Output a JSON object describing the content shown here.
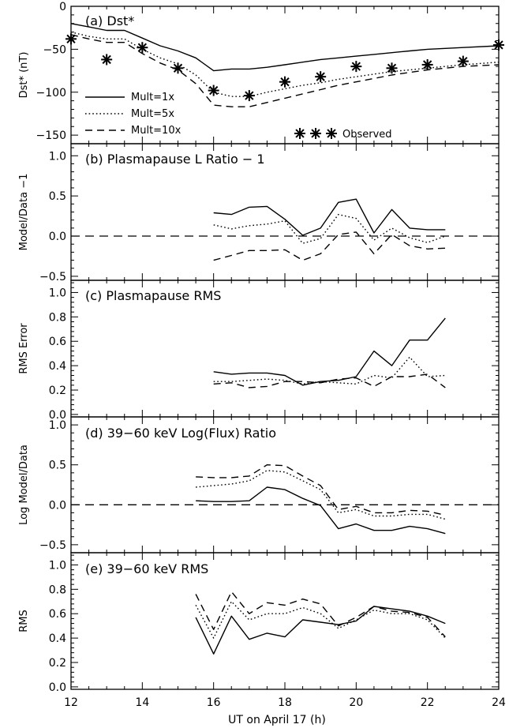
{
  "x_axis": {
    "label": "UT on April 17 (h)",
    "range": [
      12,
      24
    ],
    "ticks": [
      "12",
      "14",
      "16",
      "18",
      "20",
      "22",
      "24"
    ]
  },
  "legend": {
    "entries": [
      {
        "label": "Mult=1x",
        "style": "solid"
      },
      {
        "label": "Mult=5x",
        "style": "dotted"
      },
      {
        "label": "Mult=10x",
        "style": "dashed"
      }
    ],
    "observed_label": "Observed"
  },
  "chart_data": [
    {
      "type": "line",
      "title": "(a) Dst*",
      "ylabel": "Dst* (nT)",
      "ylim": [
        -160,
        0
      ],
      "yticks": [
        0,
        -50,
        -100,
        -150
      ],
      "yticklabels": [
        "0",
        "−50",
        "−100",
        "−150"
      ],
      "series": [
        {
          "name": "Mult=1x",
          "style": "solid",
          "x": [
            12,
            12.5,
            13,
            13.5,
            14,
            14.5,
            15,
            15.5,
            16,
            16.5,
            17,
            17.5,
            18,
            18.5,
            19,
            19.5,
            20,
            20.5,
            21,
            21.5,
            22,
            22.5,
            23,
            24
          ],
          "y": [
            -20,
            -24,
            -28,
            -28,
            -37,
            -46,
            -52,
            -60,
            -75,
            -73,
            -73,
            -71,
            -68,
            -65,
            -62,
            -60,
            -58,
            -56,
            -54,
            -52,
            -50,
            -49,
            -48,
            -46
          ]
        },
        {
          "name": "Mult=5x",
          "style": "dotted",
          "x": [
            12,
            12.5,
            13,
            13.5,
            14,
            14.5,
            15,
            15.5,
            16,
            16.5,
            17,
            17.5,
            18,
            18.5,
            19,
            19.5,
            20,
            20.5,
            21,
            21.5,
            22,
            22.5,
            23,
            24
          ],
          "y": [
            -30,
            -35,
            -38,
            -38,
            -50,
            -60,
            -67,
            -80,
            -100,
            -105,
            -105,
            -100,
            -96,
            -92,
            -89,
            -85,
            -82,
            -79,
            -76,
            -74,
            -72,
            -70,
            -68,
            -65
          ]
        },
        {
          "name": "Mult=10x",
          "style": "dashed",
          "x": [
            12,
            12.5,
            13,
            13.5,
            14,
            14.5,
            15,
            15.5,
            16,
            16.5,
            17,
            17.5,
            18,
            18.5,
            19,
            19.5,
            20,
            20.5,
            21,
            21.5,
            22,
            22.5,
            23,
            24
          ],
          "y": [
            -33,
            -38,
            -42,
            -42,
            -55,
            -66,
            -74,
            -90,
            -115,
            -117,
            -117,
            -112,
            -107,
            -102,
            -97,
            -92,
            -88,
            -84,
            -80,
            -77,
            -74,
            -72,
            -70,
            -68
          ]
        },
        {
          "name": "Observed",
          "style": "markers",
          "x": [
            12,
            13,
            14,
            15,
            16,
            17,
            18,
            19,
            20,
            21,
            22,
            23,
            24
          ],
          "y": [
            -38,
            -62,
            -48,
            -72,
            -98,
            -104,
            -88,
            -82,
            -70,
            -72,
            -68,
            -64,
            -45
          ]
        }
      ]
    },
    {
      "type": "line",
      "title": "(b) Plasmapause L Ratio − 1",
      "ylabel": "Model/Data −1",
      "ylim": [
        -0.55,
        1.15
      ],
      "yticks": [
        -0.5,
        0,
        0.5,
        1.0
      ],
      "yticklabels": [
        "−0.5",
        "0.0",
        "0.5",
        "1.0"
      ],
      "reference_line": 0,
      "series": [
        {
          "name": "Mult=1x",
          "style": "solid",
          "x": [
            16,
            16.5,
            17,
            17.5,
            18,
            18.5,
            19,
            19.5,
            20,
            20.5,
            21,
            21.5,
            22,
            22.5
          ],
          "y": [
            0.29,
            0.27,
            0.36,
            0.37,
            0.21,
            0.01,
            0.1,
            0.42,
            0.46,
            0.04,
            0.33,
            0.1,
            0.08,
            0.08
          ]
        },
        {
          "name": "Mult=5x",
          "style": "dotted",
          "x": [
            16,
            16.5,
            17,
            17.5,
            18,
            18.5,
            19,
            19.5,
            20,
            20.5,
            21,
            21.5,
            22,
            22.5
          ],
          "y": [
            0.14,
            0.09,
            0.13,
            0.15,
            0.19,
            -0.09,
            -0.03,
            0.27,
            0.22,
            -0.05,
            0.1,
            -0.02,
            -0.08,
            0.0
          ]
        },
        {
          "name": "Mult=10x",
          "style": "dashed",
          "x": [
            16,
            16.5,
            17,
            17.5,
            18,
            18.5,
            19,
            19.5,
            20,
            20.5,
            21,
            21.5,
            22,
            22.5
          ],
          "y": [
            -0.3,
            -0.24,
            -0.18,
            -0.18,
            -0.17,
            -0.3,
            -0.22,
            0.02,
            0.05,
            -0.22,
            0.02,
            -0.12,
            -0.16,
            -0.15
          ]
        }
      ]
    },
    {
      "type": "line",
      "title": "(c) Plasmapause RMS",
      "ylabel": "RMS Error",
      "ylim": [
        -0.02,
        1.1
      ],
      "yticks": [
        0.0,
        0.2,
        0.4,
        0.6,
        0.8,
        1.0
      ],
      "yticklabels": [
        "0.0",
        "0.2",
        "0.4",
        "0.6",
        "0.8",
        "1.0"
      ],
      "series": [
        {
          "name": "Mult=1x",
          "style": "solid",
          "x": [
            16,
            16.5,
            17,
            17.5,
            18,
            18.5,
            19,
            19.5,
            20,
            20.5,
            21,
            21.5,
            22,
            22.5
          ],
          "y": [
            0.35,
            0.33,
            0.34,
            0.34,
            0.32,
            0.24,
            0.27,
            0.28,
            0.31,
            0.52,
            0.4,
            0.61,
            0.61,
            0.79
          ]
        },
        {
          "name": "Mult=5x",
          "style": "dotted",
          "x": [
            16,
            16.5,
            17,
            17.5,
            18,
            18.5,
            19,
            19.5,
            20,
            20.5,
            21,
            21.5,
            22,
            22.5
          ],
          "y": [
            0.27,
            0.27,
            0.28,
            0.29,
            0.28,
            0.25,
            0.27,
            0.26,
            0.25,
            0.32,
            0.3,
            0.47,
            0.31,
            0.32
          ]
        },
        {
          "name": "Mult=10x",
          "style": "dashed",
          "x": [
            16,
            16.5,
            17,
            17.5,
            18,
            18.5,
            19,
            19.5,
            20,
            20.5,
            21,
            21.5,
            22,
            22.5
          ],
          "y": [
            0.25,
            0.26,
            0.22,
            0.23,
            0.27,
            0.27,
            0.26,
            0.29,
            0.3,
            0.23,
            0.31,
            0.31,
            0.33,
            0.22
          ]
        }
      ]
    },
    {
      "type": "line",
      "title": "(d) 39−60 keV Log(Flux) Ratio",
      "ylabel": "Log Model/Data",
      "ylim": [
        -0.6,
        1.1
      ],
      "yticks": [
        -0.5,
        0,
        0.5,
        1.0
      ],
      "yticklabels": [
        "−0.5",
        "0.0",
        "0.5",
        "1.0"
      ],
      "reference_line": 0,
      "series": [
        {
          "name": "Mult=1x",
          "style": "solid",
          "x": [
            15.5,
            16,
            16.5,
            17,
            17.5,
            18,
            18.5,
            19,
            19.5,
            20,
            20.5,
            21,
            21.5,
            22,
            22.5
          ],
          "y": [
            0.05,
            0.04,
            0.04,
            0.05,
            0.22,
            0.19,
            0.08,
            -0.01,
            -0.3,
            -0.24,
            -0.32,
            -0.32,
            -0.27,
            -0.3,
            -0.36
          ]
        },
        {
          "name": "Mult=5x",
          "style": "dotted",
          "x": [
            15.5,
            16,
            16.5,
            17,
            17.5,
            18,
            18.5,
            19,
            19.5,
            20,
            20.5,
            21,
            21.5,
            22,
            22.5
          ],
          "y": [
            0.22,
            0.24,
            0.26,
            0.3,
            0.43,
            0.41,
            0.3,
            0.19,
            -0.1,
            -0.06,
            -0.14,
            -0.14,
            -0.12,
            -0.12,
            -0.18
          ]
        },
        {
          "name": "Mult=10x",
          "style": "dashed",
          "x": [
            15.5,
            16,
            16.5,
            17,
            17.5,
            18,
            18.5,
            19,
            19.5,
            20,
            20.5,
            21,
            21.5,
            22,
            22.5
          ],
          "y": [
            0.35,
            0.34,
            0.34,
            0.36,
            0.5,
            0.49,
            0.36,
            0.24,
            -0.06,
            -0.02,
            -0.1,
            -0.1,
            -0.07,
            -0.08,
            -0.13
          ]
        }
      ]
    },
    {
      "type": "line",
      "title": "(e) 39−60 keV RMS",
      "ylabel": "RMS",
      "ylim": [
        -0.02,
        1.1
      ],
      "yticks": [
        0.0,
        0.2,
        0.4,
        0.6,
        0.8,
        1.0
      ],
      "yticklabels": [
        "0.0",
        "0.2",
        "0.4",
        "0.6",
        "0.8",
        "1.0"
      ],
      "series": [
        {
          "name": "Mult=1x",
          "style": "solid",
          "x": [
            15.5,
            16,
            16.5,
            17,
            17.5,
            18,
            18.5,
            19,
            19.5,
            20,
            20.5,
            21,
            21.5,
            22,
            22.5
          ],
          "y": [
            0.57,
            0.27,
            0.58,
            0.39,
            0.44,
            0.41,
            0.55,
            0.53,
            0.51,
            0.54,
            0.66,
            0.64,
            0.62,
            0.58,
            0.52
          ]
        },
        {
          "name": "Mult=5x",
          "style": "dotted",
          "x": [
            15.5,
            16,
            16.5,
            17,
            17.5,
            18,
            18.5,
            19,
            19.5,
            20,
            20.5,
            21,
            21.5,
            22,
            22.5
          ],
          "y": [
            0.67,
            0.4,
            0.7,
            0.55,
            0.6,
            0.6,
            0.65,
            0.6,
            0.48,
            0.55,
            0.63,
            0.6,
            0.6,
            0.55,
            0.4
          ]
        },
        {
          "name": "Mult=10x",
          "style": "dashed",
          "x": [
            15.5,
            16,
            16.5,
            17,
            17.5,
            18,
            18.5,
            19,
            19.5,
            20,
            20.5,
            21,
            21.5,
            22,
            22.5
          ],
          "y": [
            0.76,
            0.47,
            0.78,
            0.6,
            0.69,
            0.67,
            0.72,
            0.68,
            0.5,
            0.57,
            0.66,
            0.62,
            0.61,
            0.57,
            0.41
          ]
        }
      ]
    }
  ]
}
